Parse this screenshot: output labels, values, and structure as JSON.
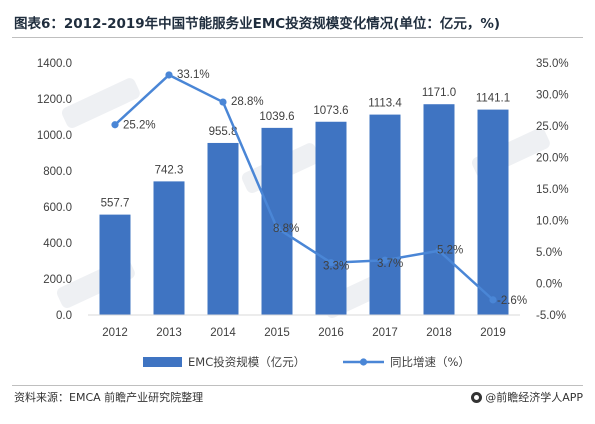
{
  "title": "图表6：2012-2019年中国节能服务业EMC投资规模变化情况(单位：亿元，%)",
  "source": "资料来源：EMCA 前瞻产业研究院整理",
  "brand": "@前瞻经济学人APP",
  "colors": {
    "bar": "#3f74c2",
    "line": "#4a86d6",
    "grid": "#d9d9d9",
    "text": "#404040"
  },
  "chart_data": {
    "type": "bar",
    "categories": [
      "2012",
      "2013",
      "2014",
      "2015",
      "2016",
      "2017",
      "2018",
      "2019"
    ],
    "series": [
      {
        "name": "EMC投资规模（亿元）",
        "type": "bar",
        "axis": "left",
        "values": [
          557.7,
          742.3,
          955.8,
          1039.6,
          1073.6,
          1113.4,
          1171.0,
          1141.1
        ],
        "labels": [
          "557.7",
          "742.3",
          "955.8",
          "1039.6",
          "1073.6",
          "1113.4",
          "1171.0",
          "1141.1"
        ]
      },
      {
        "name": "同比增速（%）",
        "type": "line",
        "axis": "right",
        "values": [
          25.2,
          33.1,
          28.8,
          8.8,
          3.3,
          3.7,
          5.2,
          -2.6
        ],
        "labels": [
          "25.2%",
          "33.1%",
          "28.8%",
          "8.8%",
          "3.3%",
          "3.7%",
          "5.2%",
          "-2.6%"
        ]
      }
    ],
    "left_axis": {
      "ylim": [
        0,
        1400
      ],
      "ticks": [
        0,
        200,
        400,
        600,
        800,
        1000,
        1200,
        1400
      ],
      "tick_labels": [
        "0.0",
        "200.0",
        "400.0",
        "600.0",
        "800.0",
        "1000.0",
        "1200.0",
        "1400.0"
      ]
    },
    "right_axis": {
      "ylim": [
        -5,
        35
      ],
      "ticks": [
        -5,
        0,
        5,
        10,
        15,
        20,
        25,
        30,
        35
      ],
      "tick_labels": [
        "-5.0%",
        "0.0%",
        "5.0%",
        "10.0%",
        "15.0%",
        "20.0%",
        "25.0%",
        "30.0%",
        "35.0%"
      ]
    },
    "grid": false,
    "legend_position": "bottom"
  }
}
